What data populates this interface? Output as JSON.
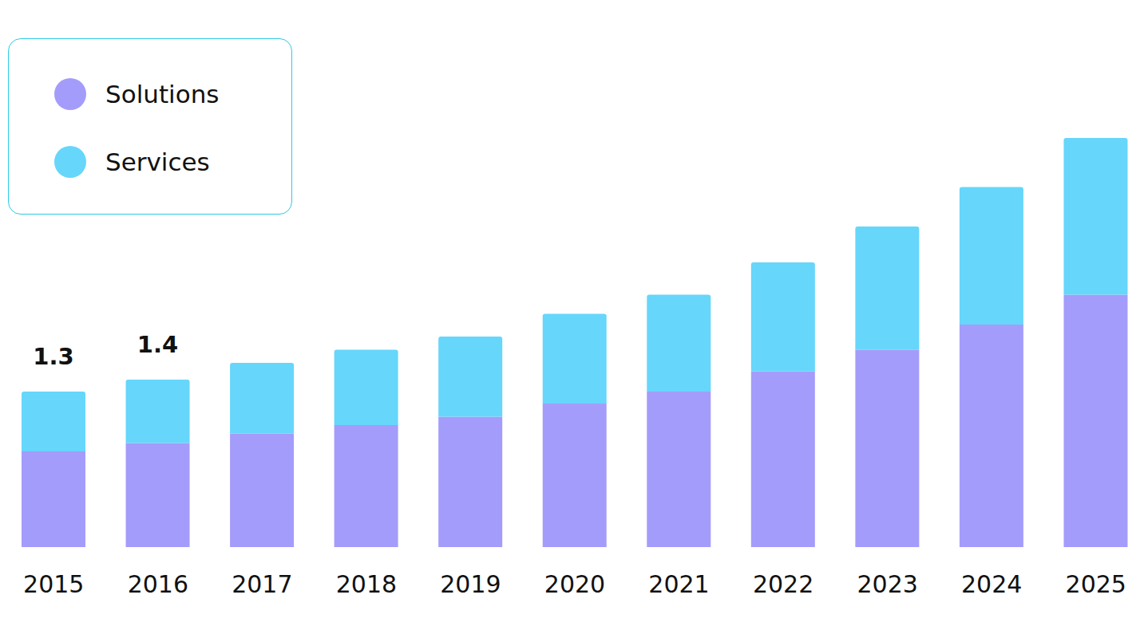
{
  "chart_data": {
    "type": "bar",
    "stacked": true,
    "categories": [
      "2015",
      "2016",
      "2017",
      "2018",
      "2019",
      "2020",
      "2021",
      "2022",
      "2023",
      "2024",
      "2025"
    ],
    "series": [
      {
        "name": "Solutions",
        "color": "#a49cfb",
        "values": [
          0.8,
          0.87,
          0.95,
          1.02,
          1.09,
          1.2,
          1.3,
          1.47,
          1.65,
          1.86,
          2.11
        ]
      },
      {
        "name": "Services",
        "color": "#66d6fb",
        "values": [
          0.5,
          0.53,
          0.59,
          0.63,
          0.67,
          0.75,
          0.81,
          0.91,
          1.03,
          1.15,
          1.31
        ]
      }
    ],
    "total_labels": [
      1.3,
      1.4,
      null,
      null,
      null,
      null,
      null,
      null,
      null,
      null,
      null
    ],
    "ylim": [
      0,
      4.5
    ],
    "yticks": [
      0,
      4.5
    ],
    "tick_labels": "x",
    "legend": "top-left",
    "grid": false
  }
}
